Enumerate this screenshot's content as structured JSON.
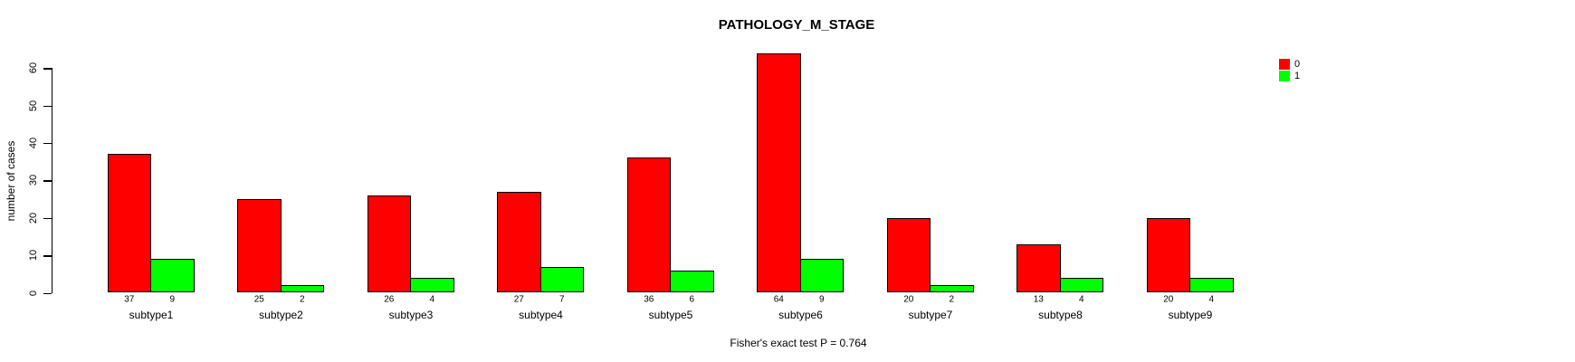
{
  "chart_data": {
    "type": "bar",
    "title": "PATHOLOGY_M_STAGE",
    "ylabel": "number of cases",
    "xlabel": "",
    "categories": [
      "subtype1",
      "subtype2",
      "subtype3",
      "subtype4",
      "subtype5",
      "subtype6",
      "subtype7",
      "subtype8",
      "subtype9"
    ],
    "series": [
      {
        "name": "0",
        "color": "#ff0000",
        "values": [
          37,
          25,
          26,
          27,
          36,
          64,
          20,
          13,
          20
        ]
      },
      {
        "name": "1",
        "color": "#00ff00",
        "values": [
          9,
          2,
          4,
          7,
          6,
          9,
          2,
          4,
          4
        ]
      }
    ],
    "yticks": [
      0,
      10,
      20,
      30,
      40,
      50,
      60
    ],
    "ylim": [
      0,
      60
    ],
    "grid": false,
    "legend_position": "top-right",
    "bar_value_labels_shown": true,
    "annotation": "Fisher's exact test P = 0.764"
  },
  "colors": {
    "background": "#ffffff",
    "axis": "#000000",
    "text": "#000000",
    "series0": "#ff0000",
    "series1": "#00ff00"
  }
}
